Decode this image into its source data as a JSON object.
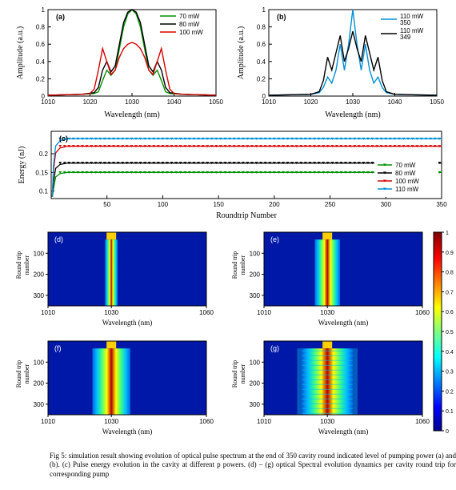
{
  "panelA": {
    "tag": "(a)",
    "xlabel": "Wavelength (nm)",
    "ylabel": "Amplitude (a.u.)",
    "xlim": [
      1010,
      1050
    ],
    "xticks": [
      1010,
      1020,
      1030,
      1040,
      1050
    ],
    "ylim": [
      0,
      1
    ],
    "yticks": [
      0,
      0.2,
      0.4,
      0.6,
      0.8,
      1
    ],
    "series": [
      {
        "label": "70 mW",
        "color": "#009000",
        "x": [
          1010,
          1018,
          1021,
          1022,
          1023,
          1024,
          1025,
          1026,
          1027,
          1028,
          1029,
          1030,
          1031,
          1032,
          1033,
          1034,
          1035,
          1036,
          1037,
          1038,
          1039,
          1042,
          1050
        ],
        "y": [
          0.01,
          0.02,
          0.03,
          0.05,
          0.18,
          0.3,
          0.24,
          0.3,
          0.55,
          0.8,
          0.95,
          1.0,
          0.95,
          0.8,
          0.55,
          0.3,
          0.24,
          0.3,
          0.18,
          0.05,
          0.03,
          0.02,
          0.01
        ]
      },
      {
        "label": "80 mW",
        "color": "#000000",
        "x": [
          1010,
          1018,
          1021,
          1022,
          1023,
          1024,
          1025,
          1026,
          1027,
          1028,
          1029,
          1030,
          1031,
          1032,
          1033,
          1034,
          1035,
          1036,
          1037,
          1038,
          1039,
          1042,
          1050
        ],
        "y": [
          0.01,
          0.02,
          0.04,
          0.1,
          0.3,
          0.4,
          0.28,
          0.35,
          0.6,
          0.85,
          0.97,
          1.0,
          0.97,
          0.85,
          0.6,
          0.35,
          0.28,
          0.4,
          0.3,
          0.1,
          0.04,
          0.02,
          0.01
        ]
      },
      {
        "label": "100  mW",
        "color": "#d80000",
        "x": [
          1010,
          1018,
          1020,
          1021,
          1022,
          1023,
          1024,
          1025,
          1026,
          1027,
          1028,
          1029,
          1030,
          1031,
          1032,
          1033,
          1034,
          1035,
          1036,
          1037,
          1038,
          1039,
          1040,
          1042,
          1050
        ],
        "y": [
          0.01,
          0.02,
          0.03,
          0.08,
          0.3,
          0.55,
          0.4,
          0.25,
          0.3,
          0.45,
          0.55,
          0.6,
          0.62,
          0.6,
          0.55,
          0.45,
          0.3,
          0.25,
          0.4,
          0.55,
          0.3,
          0.08,
          0.03,
          0.02,
          0.01
        ]
      }
    ]
  },
  "panelB": {
    "tag": "(b)",
    "xlabel": "Wavelength (nm)",
    "ylabel": "Amplitude (a.u.)",
    "xlim": [
      1010,
      1050
    ],
    "xticks": [
      1010,
      1020,
      1030,
      1040,
      1050
    ],
    "ylim": [
      0,
      1
    ],
    "yticks": [
      0,
      0.2,
      0.4,
      0.6,
      0.8,
      1
    ],
    "series": [
      {
        "label1": "110 mW",
        "label2": "350",
        "color": "#0090d8",
        "x": [
          1010,
          1020,
          1022,
          1023,
          1024,
          1025,
          1026,
          1027,
          1028,
          1029,
          1030,
          1031,
          1032,
          1033,
          1034,
          1035,
          1036,
          1037,
          1038,
          1040,
          1050
        ],
        "y": [
          0.01,
          0.02,
          0.04,
          0.1,
          0.22,
          0.15,
          0.3,
          0.6,
          0.3,
          0.6,
          1.0,
          0.6,
          0.3,
          0.6,
          0.3,
          0.15,
          0.22,
          0.1,
          0.04,
          0.02,
          0.01
        ]
      },
      {
        "label1": "110 mW",
        "label2": "349",
        "color": "#000000",
        "x": [
          1010,
          1020,
          1022,
          1023,
          1024,
          1025,
          1026,
          1027,
          1028,
          1029,
          1030,
          1031,
          1032,
          1033,
          1034,
          1035,
          1036,
          1037,
          1038,
          1040,
          1050
        ],
        "y": [
          0.01,
          0.02,
          0.05,
          0.18,
          0.45,
          0.3,
          0.5,
          0.7,
          0.4,
          0.55,
          0.75,
          0.55,
          0.4,
          0.7,
          0.5,
          0.3,
          0.45,
          0.18,
          0.05,
          0.02,
          0.01
        ]
      }
    ]
  },
  "panelC": {
    "tag": "(c)",
    "xlabel": "Roundtrip Number",
    "ylabel": "Energy (nJ)",
    "xlim": [
      0,
      350
    ],
    "xticks": [
      50,
      100,
      150,
      200,
      250,
      300,
      350
    ],
    "ylim": [
      0.08,
      0.26
    ],
    "yticks": [
      0.1,
      0.15,
      0.2
    ],
    "series": [
      {
        "label": "70 mW",
        "color": "#009000",
        "y_flat": 0.15,
        "marker": "v"
      },
      {
        "label": "80 mW",
        "color": "#000000",
        "y_flat": 0.175,
        "marker": "v"
      },
      {
        "label": "100 mW",
        "color": "#d80000",
        "y_flat": 0.22,
        "marker": "v"
      },
      {
        "label": "110 mW",
        "color": "#0090d8",
        "y_flat": 0.24,
        "marker": "v"
      }
    ]
  },
  "spectrogram": {
    "xlabel": "Wavelength (nm)",
    "ylabel": "Round trip\nnumber",
    "xlim": [
      1010,
      1060
    ],
    "xticks": [
      1010,
      1030,
      1060
    ],
    "ylim": [
      0,
      350
    ],
    "yticks": [
      100,
      200,
      300
    ],
    "colormap": "jet",
    "clim": [
      0,
      1
    ],
    "panels": [
      {
        "tag": "(d)",
        "band_nm": [
          1028,
          1032
        ],
        "core_color": "#b40000",
        "side_color": "#0030c0",
        "fringe": false
      },
      {
        "tag": "(e)",
        "band_nm": [
          1026,
          1034
        ],
        "core_color": "#b40000",
        "side_color": "#0030c0",
        "fringe": false
      },
      {
        "tag": "(f)",
        "band_nm": [
          1024,
          1036
        ],
        "core_color": "#b40000",
        "side_color": "#0030c0",
        "fringe": false
      },
      {
        "tag": "(g)",
        "band_nm": [
          1022,
          1038
        ],
        "core_color": "#b40000",
        "side_color": "#0030c0",
        "fringe": true
      }
    ],
    "colorbar_ticks": [
      0,
      0.1,
      0.2,
      0.3,
      0.4,
      0.5,
      0.6,
      0.7,
      0.8,
      0.9,
      1
    ]
  },
  "caption": "Fig 5: simulation result showing evolution of optical pulse spectrum at the end of 350 cavity round indicated level of pumping power (a) and (b). (c) Pulse energy evolution in the cavity at different p powers. (d) – (g) optical Spectral evolution dynamics per cavity round trip for corresponding pump"
}
